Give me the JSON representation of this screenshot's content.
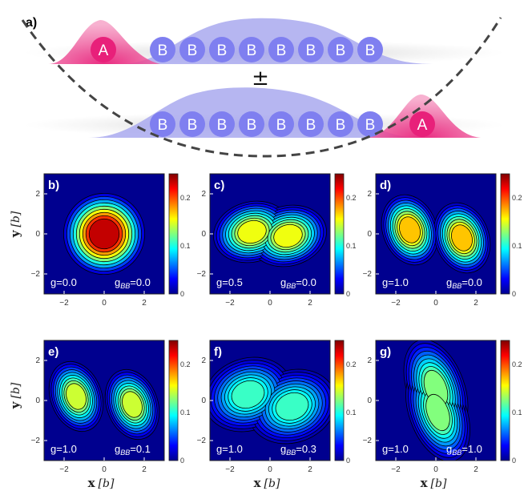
{
  "schematic": {
    "label": "a)",
    "top_row": {
      "a_label": "A",
      "b_labels": [
        "B",
        "B",
        "B",
        "B",
        "B",
        "B",
        "B",
        "B"
      ]
    },
    "separator": "±",
    "bottom_row": {
      "a_label": "A",
      "b_labels": [
        "B",
        "B",
        "B",
        "B",
        "B",
        "B",
        "B",
        "B"
      ]
    },
    "colors": {
      "a_atom": "#e8207a",
      "a_cloud": "#ee5a9c",
      "b_atom": "#7f7ff0",
      "b_cloud": "#a9a9ee",
      "trap": "#444444"
    }
  },
  "axes": {
    "xlabel_symbol": "x",
    "ylabel_symbol": "y",
    "unit": "[b]",
    "x_ticks": [
      "−2",
      "0",
      "2"
    ],
    "y_ticks": [
      "2",
      "0",
      "−2"
    ],
    "colorbar_ticks": [
      "0.2",
      "0.1",
      "0"
    ]
  },
  "panels": [
    {
      "id": "b",
      "label": "b)",
      "g_text": "g=0.0",
      "gbb_prefix": "g",
      "gbb_sub": "BB",
      "gbb_value": "=0.0"
    },
    {
      "id": "c",
      "label": "c)",
      "g_text": "g=0.5",
      "gbb_prefix": "g",
      "gbb_sub": "BB",
      "gbb_value": "=0.0"
    },
    {
      "id": "d",
      "label": "d)",
      "g_text": "g=1.0",
      "gbb_prefix": "g",
      "gbb_sub": "BB",
      "gbb_value": "=0.0"
    },
    {
      "id": "e",
      "label": "e)",
      "g_text": "g=1.0",
      "gbb_prefix": "g",
      "gbb_sub": "BB",
      "gbb_value": "=0.1"
    },
    {
      "id": "f",
      "label": "f)",
      "g_text": "g=1.0",
      "gbb_prefix": "g",
      "gbb_sub": "BB",
      "gbb_value": "=0.3"
    },
    {
      "id": "g",
      "label": "g)",
      "g_text": "g=1.0",
      "gbb_prefix": "g",
      "gbb_sub": "BB",
      "gbb_value": "=1.0"
    }
  ],
  "colormap": "jet"
}
